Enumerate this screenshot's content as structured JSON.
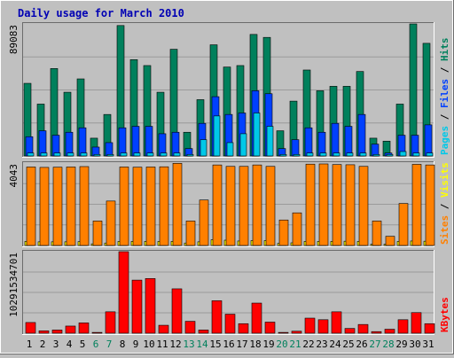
{
  "chart_data": {
    "type": "bar",
    "title": "Daily usage for March 2010",
    "colors": {
      "background": "#c0c0c0",
      "plot_background": "#c0c0c0",
      "grid": "#9a9a9a",
      "title": "#0000b4",
      "pages": "#00c8e8",
      "files": "#0040ff",
      "hits": "#00805c",
      "sites": "#ff8000",
      "visits": "#ffff00",
      "kbytes": "#ff0000",
      "weekday_label": "#000000",
      "weekend_label": "#00805c"
    },
    "categories": [
      "1",
      "2",
      "3",
      "4",
      "5",
      "6",
      "7",
      "8",
      "9",
      "10",
      "11",
      "12",
      "13",
      "14",
      "15",
      "16",
      "17",
      "18",
      "19",
      "20",
      "21",
      "22",
      "23",
      "24",
      "25",
      "26",
      "27",
      "28",
      "29",
      "30",
      "31"
    ],
    "weekend_days": [
      "6",
      "7",
      "13",
      "14",
      "20",
      "21",
      "27",
      "28"
    ],
    "panels": [
      {
        "id": "hits-files-pages",
        "ymax_label": "89083",
        "ylim": [
          0,
          89083
        ],
        "series": [
          {
            "name": "Hits",
            "color": "#00805c",
            "values": [
              49000,
              35000,
              59000,
              43000,
              52000,
              12000,
              28000,
              88000,
              65000,
              61000,
              43000,
              72000,
              16000,
              38000,
              75000,
              60000,
              61000,
              82000,
              80000,
              17000,
              37000,
              58000,
              44000,
              47000,
              47000,
              57000,
              12000,
              10000,
              35000,
              90000,
              76000
            ]
          },
          {
            "name": "Files",
            "color": "#0040ff",
            "values": [
              13000,
              17000,
              14000,
              16000,
              19000,
              6000,
              9000,
              19000,
              20000,
              20000,
              15000,
              16000,
              5000,
              22000,
              40000,
              28000,
              29000,
              44000,
              42000,
              5000,
              11000,
              19000,
              16000,
              22000,
              20000,
              28000,
              8000,
              2000,
              14000,
              14000,
              21000
            ]
          },
          {
            "name": "Pages",
            "color": "#00c8e8",
            "values": [
              2000,
              2000,
              2000,
              2000,
              2000,
              1000,
              1000,
              2000,
              2000,
              2000,
              2000,
              2000,
              1000,
              11000,
              27000,
              9000,
              15000,
              29000,
              20000,
              1000,
              1000,
              2000,
              2000,
              2000,
              2000,
              2000,
              1000,
              1000,
              3000,
              2000,
              2000
            ]
          }
        ],
        "axis_label_parts": [
          {
            "text": "Pages",
            "color": "#00c8e8"
          },
          {
            "text": " / ",
            "color": "#000000"
          },
          {
            "text": "Files",
            "color": "#0040ff"
          },
          {
            "text": " / ",
            "color": "#000000"
          },
          {
            "text": "Hits",
            "color": "#00805c"
          }
        ]
      },
      {
        "id": "visits-sites",
        "ymax_label": "4043",
        "ylim": [
          0,
          4043
        ],
        "series": [
          {
            "name": "Visits",
            "color": "#ffff00",
            "values": [
              200,
              180,
              180,
              180,
              190,
              80,
              120,
              200,
              200,
              200,
              200,
              200,
              120,
              180,
              280,
              260,
              220,
              240,
              240,
              100,
              130,
              200,
              200,
              200,
              210,
              200,
              60,
              60,
              200,
              220,
              210
            ]
          },
          {
            "name": "Sites",
            "color": "#ff8000",
            "values": [
              3850,
              3830,
              3840,
              3850,
              3870,
              1200,
              2180,
              3850,
              3840,
              3850,
              3860,
              4030,
              1200,
              2230,
              3950,
              3880,
              3880,
              3950,
              3880,
              1250,
              1600,
              3990,
              4000,
              3970,
              3960,
              3880,
              1200,
              450,
              2060,
              3980,
              3950
            ]
          }
        ],
        "axis_label_parts": [
          {
            "text": "Sites",
            "color": "#ff8000"
          },
          {
            "text": " / ",
            "color": "#000000"
          },
          {
            "text": "Visits",
            "color": "#ffff00"
          }
        ]
      },
      {
        "id": "kbytes",
        "ymax_label": "10291534701",
        "ylim": [
          0,
          10291534701
        ],
        "series": [
          {
            "name": "KBytes",
            "color": "#ff0000",
            "values": [
              1350000000,
              300000000,
              400000000,
              900000000,
              1300000000,
              100000000,
              2700000000,
              10300000000,
              6700000000,
              6900000000,
              1000000000,
              5600000000,
              1500000000,
              400000000,
              4100000000,
              2400000000,
              1200000000,
              3800000000,
              1400000000,
              100000000,
              250000000,
              1900000000,
              1700000000,
              2700000000,
              600000000,
              1100000000,
              200000000,
              500000000,
              1700000000,
              2600000000,
              1200000000
            ]
          }
        ],
        "axis_label_parts": [
          {
            "text": "KBytes",
            "color": "#ff0000"
          }
        ]
      }
    ]
  }
}
